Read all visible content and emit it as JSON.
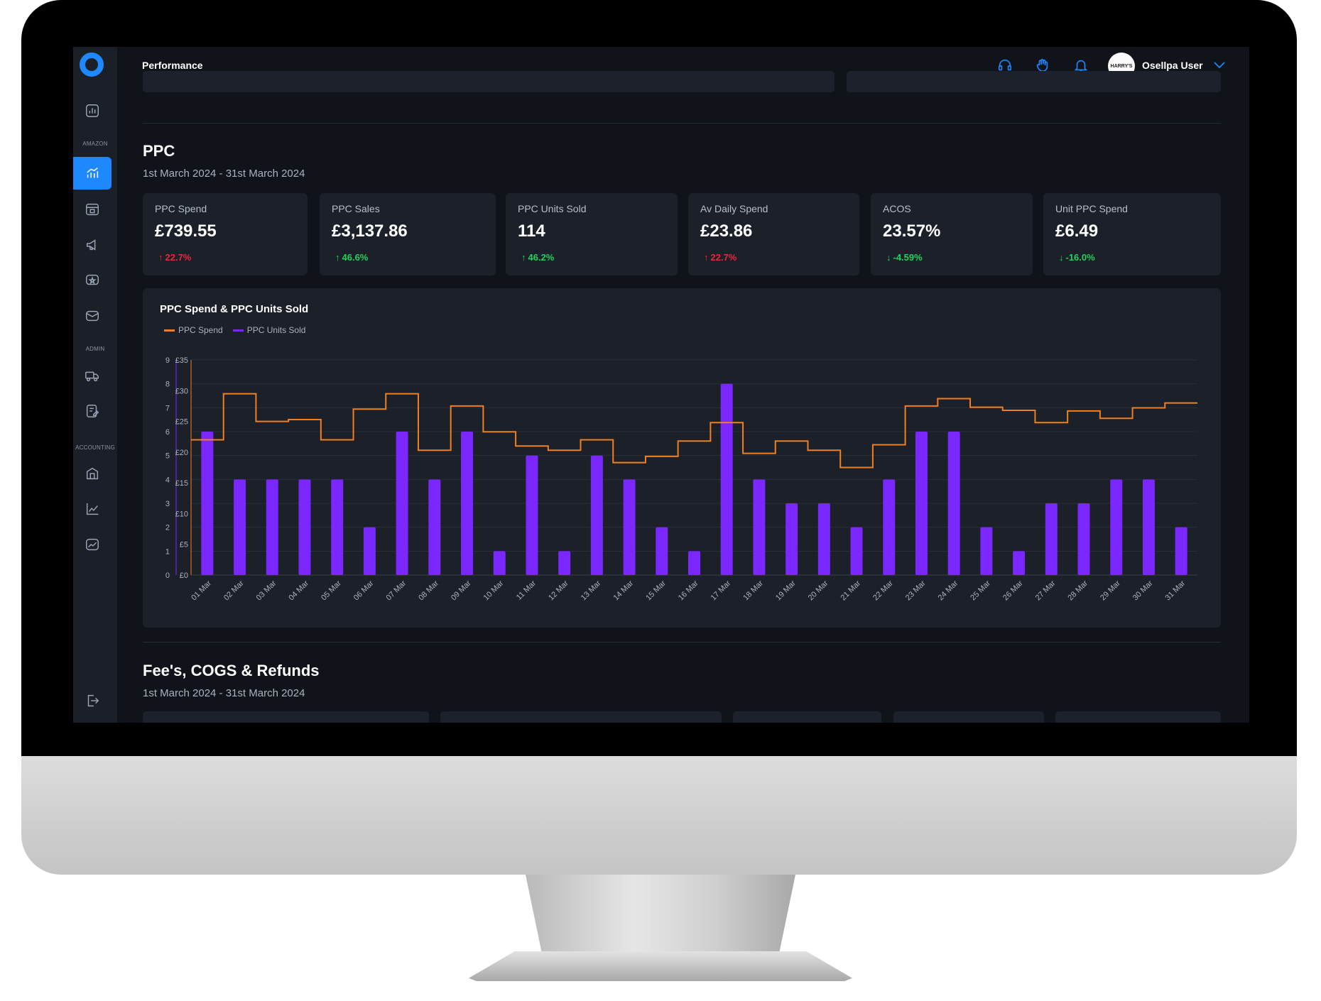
{
  "app": {
    "page_title": "Performance",
    "user_name": "Osellpa User",
    "avatar_text": "HARRY'S"
  },
  "sidebar": {
    "sections": [
      "AMAZON",
      "ADMIN",
      "ACCOUNTING"
    ],
    "items": [
      {
        "icon": "dashboard-icon",
        "active": false
      },
      {
        "icon": "performance-chart-icon",
        "active": true
      },
      {
        "icon": "inventory-icon",
        "active": false
      },
      {
        "icon": "megaphone-icon",
        "active": false
      },
      {
        "icon": "reviews-icon",
        "active": false
      },
      {
        "icon": "messages-icon",
        "active": false
      },
      {
        "icon": "shipping-icon",
        "active": false
      },
      {
        "icon": "edit-document-icon",
        "active": false
      },
      {
        "icon": "bank-icon",
        "active": false
      },
      {
        "icon": "line-chart-icon",
        "active": false
      },
      {
        "icon": "report-icon",
        "active": false
      },
      {
        "icon": "logout-icon",
        "active": false
      }
    ]
  },
  "colors": {
    "accent": "#1e88ff",
    "ppc_spend": "#f07f22",
    "ppc_units": "#7b27ff",
    "positive": "#22d35b",
    "negative": "#f0263a"
  },
  "ppc": {
    "title": "PPC",
    "date_range": "1st March 2024 - 31st March 2024",
    "kpis": [
      {
        "label": "PPC Spend",
        "value": "£739.55",
        "change": "22.7%",
        "direction": "up",
        "tone": "bad"
      },
      {
        "label": "PPC Sales",
        "value": "£3,137.86",
        "change": "46.6%",
        "direction": "up",
        "tone": "good"
      },
      {
        "label": "PPC Units Sold",
        "value": "114",
        "change": "46.2%",
        "direction": "up",
        "tone": "good"
      },
      {
        "label": "Av Daily Spend",
        "value": "£23.86",
        "change": "22.7%",
        "direction": "up",
        "tone": "bad"
      },
      {
        "label": "ACOS",
        "value": "23.57%",
        "change": "-4.59%",
        "direction": "down",
        "tone": "good"
      },
      {
        "label": "Unit PPC Spend",
        "value": "£6.49",
        "change": "-16.0%",
        "direction": "down",
        "tone": "good"
      }
    ]
  },
  "fees": {
    "title": "Fee's, COGS & Refunds",
    "date_range": "1st March 2024 - 31st March 2024"
  },
  "chart_data": {
    "type": "bar",
    "title": "PPC Spend & PPC Units Sold",
    "categories": [
      "01 Mar",
      "02 Mar",
      "03 Mar",
      "04 Mar",
      "05 Mar",
      "06 Mar",
      "07 Mar",
      "08 Mar",
      "09 Mar",
      "10 Mar",
      "11 Mar",
      "12 Mar",
      "13 Mar",
      "14 Mar",
      "15 Mar",
      "16 Mar",
      "17 Mar",
      "18 Mar",
      "19 Mar",
      "20 Mar",
      "21 Mar",
      "22 Mar",
      "23 Mar",
      "24 Mar",
      "25 Mar",
      "26 Mar",
      "27 Mar",
      "28 Mar",
      "29 Mar",
      "30 Mar",
      "31 Mar"
    ],
    "series": [
      {
        "name": "PPC Units Sold",
        "type": "bar",
        "axis": "left",
        "color": "#7b27ff",
        "values": [
          6,
          4,
          4,
          4,
          4,
          2,
          6,
          4,
          6,
          1,
          5,
          1,
          5,
          4,
          2,
          1,
          8,
          4,
          3,
          3,
          2,
          4,
          6,
          6,
          2,
          1,
          3,
          3,
          4,
          4,
          2
        ]
      },
      {
        "name": "PPC Spend",
        "type": "step-line",
        "axis": "right",
        "color": "#f07f22",
        "values": [
          22,
          29.5,
          25,
          25.3,
          22,
          27,
          29.5,
          20.3,
          27.5,
          23.3,
          21,
          20.3,
          22,
          18.3,
          19.3,
          21.8,
          24.8,
          19.8,
          21.8,
          20.3,
          17.5,
          21.2,
          27.5,
          28.7,
          27.3,
          26.8,
          24.8,
          26.7,
          25.5,
          27.2,
          28
        ]
      }
    ],
    "left_axis": {
      "ylim": [
        0,
        9
      ],
      "ticks": [
        "0",
        "1",
        "2",
        "3",
        "4",
        "5",
        "6",
        "7",
        "8",
        "9"
      ]
    },
    "right_axis": {
      "ylim": [
        0,
        35
      ],
      "ticks": [
        "£0",
        "£5",
        "£10",
        "£15",
        "£20",
        "£25",
        "£30",
        "£35"
      ]
    },
    "grid": true,
    "legend_placement": "top-left",
    "legend": [
      "PPC Spend",
      "PPC Units Sold"
    ]
  }
}
